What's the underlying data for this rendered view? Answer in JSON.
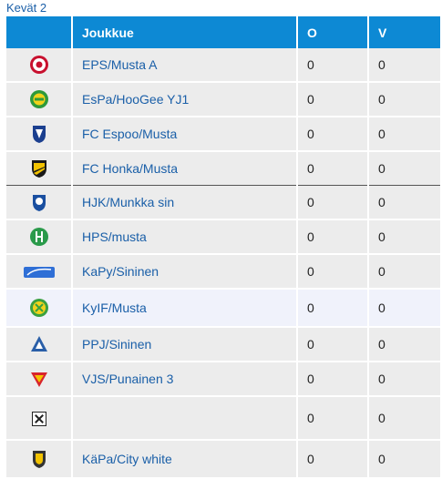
{
  "caption": "Kevät 2",
  "headers": {
    "logo": "",
    "team": "Joukkue",
    "o": "O",
    "v": "V"
  },
  "rows": [
    {
      "team": "EPS/Musta A",
      "o": "0",
      "v": "0",
      "icon": "eps-crest-icon"
    },
    {
      "team": "EsPa/HooGee YJ1",
      "o": "0",
      "v": "0",
      "icon": "espa-crest-icon"
    },
    {
      "team": "FC Espoo/Musta",
      "o": "0",
      "v": "0",
      "icon": "fc-espoo-crest-icon"
    },
    {
      "team": "FC Honka/Musta",
      "o": "0",
      "v": "0",
      "icon": "fc-honka-crest-icon"
    },
    {
      "team": "HJK/Munkka sin",
      "o": "0",
      "v": "0",
      "icon": "hjk-crest-icon"
    },
    {
      "team": "HPS/musta",
      "o": "0",
      "v": "0",
      "icon": "hps-crest-icon"
    },
    {
      "team": "KaPy/Sininen",
      "o": "0",
      "v": "0",
      "icon": "kapy-crest-icon"
    },
    {
      "team": "KyIF/Musta",
      "o": "0",
      "v": "0",
      "icon": "kyif-crest-icon"
    },
    {
      "team": "PPJ/Sininen",
      "o": "0",
      "v": "0",
      "icon": "ppj-crest-icon"
    },
    {
      "team": "VJS/Punainen 3",
      "o": "0",
      "v": "0",
      "icon": "vjs-crest-icon"
    },
    {
      "team": "",
      "o": "0",
      "v": "0",
      "icon": "broken-image-icon"
    },
    {
      "team": "KäPa/City white",
      "o": "0",
      "v": "0",
      "icon": "kapa-crest-icon"
    }
  ]
}
